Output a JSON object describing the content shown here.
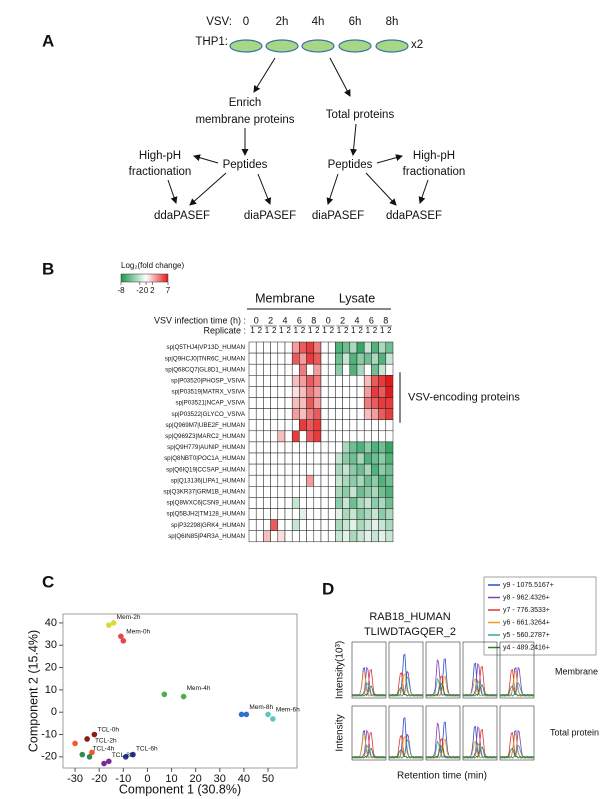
{
  "panel_labels": [
    "A",
    "B",
    "C",
    "D"
  ],
  "workflow": {
    "vsv_label": "VSV:",
    "timepoints": [
      "0",
      "2h",
      "4h",
      "6h",
      "8h"
    ],
    "cell_label": "THP1:",
    "replicates": "x2",
    "left": {
      "enrich": [
        "Enrich",
        "membrane proteins"
      ],
      "peptides": "Peptides",
      "fractionation": [
        "High-pH",
        "fractionation"
      ],
      "outputs": [
        "ddaPASEF",
        "diaPASEF"
      ]
    },
    "right": {
      "start": "Total proteins",
      "peptides": "Peptides",
      "fractionation": [
        "High-pH",
        "fractionation"
      ],
      "outputs": [
        "diaPASEF",
        "ddaPASEF"
      ]
    }
  },
  "chart_data": [
    {
      "type": "heatmap",
      "legend_title": "Log₂(fold change)",
      "clim": [
        -8,
        7
      ],
      "colorbar_ticks": [
        -8,
        -2,
        0,
        2,
        7
      ],
      "colors": {
        "low": "#1a9850",
        "mid": "#ffffff",
        "high": "#e31a1c"
      },
      "time_label": "VSV infection time (h) :",
      "replicate_label": "Replicate :",
      "groups": [
        "Membrane",
        "Lysate"
      ],
      "times": [
        0,
        2,
        4,
        6,
        8
      ],
      "replicates": [
        1,
        2
      ],
      "annotation": "VSV-encoding proteins",
      "rows": [
        "sp|Q5THJ4|VP13D_HUMAN",
        "sp|Q9HCJ0|TNR6C_HUMAN",
        "sp|Q68CQ7|GL8D1_HUMAN",
        "sp|P03520|PHOSP_VSIVA",
        "sp|P03519|MATRX_VSIVA",
        "sp|P03521|NCAP_VSIVA",
        "sp|P03522|GLYCO_VSIVA",
        "sp|Q969M7|UBE2F_HUMAN",
        "sp|Q969Z3|MARC2_HUMAN",
        "sp|Q9H779|AUNIP_HUMAN",
        "sp|Q8NBT0|POC1A_HUMAN",
        "sp|Q6IQ19|CCSAP_HUMAN",
        "sp|Q13136|LIPA1_HUMAN",
        "sp|Q3KR37|GRM1B_HUMAN",
        "sp|Q8WXC6|CSN9_HUMAN",
        "sp|Q5BJH2|TM128_HUMAN",
        "sp|P32298|GRK4_HUMAN",
        "sp|Q6IN85|P4R3A_HUMAN"
      ],
      "values": [
        [
          0,
          0,
          0,
          0,
          0,
          0,
          3,
          5,
          6,
          4,
          0,
          0,
          -6,
          -5,
          -3,
          -7,
          -2,
          -6,
          -3,
          -5
        ],
        [
          0,
          0,
          0,
          0,
          0,
          0,
          5,
          3,
          6,
          5,
          0,
          0,
          -5,
          -2,
          -6,
          -4,
          -5,
          -3,
          -6,
          -2
        ],
        [
          0,
          0,
          0,
          0,
          0,
          0,
          0,
          4,
          0,
          3,
          0,
          0,
          -4,
          0,
          -6,
          -3,
          0,
          -5,
          -2,
          0
        ],
        [
          0,
          0,
          0,
          0,
          0,
          0,
          2,
          3,
          5,
          4,
          0,
          0,
          0,
          0,
          0,
          0,
          2,
          5,
          6,
          7
        ],
        [
          0,
          0,
          0,
          0,
          0,
          0,
          1,
          2,
          4,
          3,
          0,
          0,
          0,
          0,
          0,
          0,
          3,
          6,
          5,
          7
        ],
        [
          0,
          0,
          0,
          0,
          0,
          0,
          2,
          2,
          5,
          3,
          0,
          0,
          0,
          0,
          0,
          0,
          4,
          5,
          6,
          6
        ],
        [
          0,
          0,
          0,
          0,
          0,
          0,
          3,
          2,
          4,
          5,
          0,
          0,
          0,
          0,
          0,
          0,
          2,
          3,
          5,
          6
        ],
        [
          0,
          0,
          0,
          0,
          0,
          0,
          0,
          6,
          5,
          6,
          0,
          0,
          0,
          0,
          0,
          0,
          0,
          0,
          0,
          0
        ],
        [
          0,
          0,
          0,
          0,
          2,
          0,
          6,
          0,
          5,
          6,
          0,
          0,
          0,
          0,
          0,
          0,
          0,
          0,
          0,
          0
        ],
        [
          0,
          0,
          0,
          0,
          0,
          0,
          0,
          0,
          0,
          0,
          0,
          0,
          0,
          -3,
          -5,
          -6,
          -4,
          -6,
          -5,
          -7
        ],
        [
          0,
          0,
          0,
          0,
          0,
          0,
          0,
          0,
          0,
          0,
          0,
          0,
          -2,
          -4,
          -5,
          -3,
          -6,
          -5,
          -4,
          -6
        ],
        [
          0,
          0,
          0,
          0,
          0,
          0,
          0,
          0,
          0,
          0,
          0,
          0,
          -3,
          -2,
          -4,
          -5,
          -3,
          -6,
          -4,
          -5
        ],
        [
          0,
          0,
          0,
          0,
          0,
          0,
          0,
          0,
          3,
          0,
          0,
          0,
          -2,
          -3,
          -4,
          -3,
          -5,
          -4,
          -6,
          -5
        ],
        [
          0,
          0,
          0,
          0,
          0,
          0,
          0,
          0,
          0,
          0,
          0,
          0,
          -3,
          -4,
          -2,
          -5,
          -4,
          -3,
          -5,
          -6
        ],
        [
          0,
          0,
          0,
          0,
          0,
          0,
          -2,
          0,
          0,
          0,
          0,
          0,
          -4,
          -2,
          -5,
          -3,
          -2,
          -4,
          -3,
          -5
        ],
        [
          0,
          0,
          0,
          0,
          0,
          0,
          0,
          -1,
          0,
          0,
          0,
          0,
          -1,
          -3,
          -2,
          -4,
          -3,
          -2,
          -4,
          -3
        ],
        [
          0,
          0,
          0,
          5,
          0,
          0,
          -2,
          0,
          0,
          0,
          0,
          0,
          -3,
          -2,
          -1,
          -3,
          -2,
          -1,
          -2,
          -3
        ],
        [
          0,
          0,
          2,
          0,
          1,
          0,
          0,
          0,
          0,
          0,
          0,
          0,
          -2,
          -1,
          -3,
          -2,
          -1,
          -2,
          -1,
          -2
        ]
      ]
    },
    {
      "type": "scatter",
      "xlabel": "Component 1 (30.8%)",
      "ylabel": "Component 2 (15.4%)",
      "xlim": [
        -35,
        62
      ],
      "ylim": [
        -25,
        44
      ],
      "xticks": [
        -30,
        -20,
        -10,
        0,
        10,
        20,
        30,
        40,
        50
      ],
      "yticks": [
        -20,
        -10,
        0,
        10,
        20,
        30,
        40
      ],
      "series": [
        {
          "name": "Mem-2h",
          "color": "#d9d93a",
          "x": [
            -16,
            -14
          ],
          "values": [
            39,
            40
          ]
        },
        {
          "name": "Mem-0h",
          "color": "#e8434b",
          "x": [
            -11,
            -10
          ],
          "values": [
            34,
            32
          ]
        },
        {
          "name": "Mem-4h",
          "color": "#4cae4c",
          "x": [
            7,
            15
          ],
          "values": [
            8,
            7
          ]
        },
        {
          "name": "Mem-8h",
          "color": "#2f6fd6",
          "x": [
            39,
            41
          ],
          "values": [
            -1,
            -1
          ]
        },
        {
          "name": "Mem-6h",
          "color": "#5ec8c0",
          "x": [
            50,
            52
          ],
          "values": [
            -1,
            -3
          ]
        },
        {
          "name": "TCL-0h",
          "color": "#8b1a1a",
          "x": [
            -25,
            -22
          ],
          "values": [
            -12,
            -10
          ]
        },
        {
          "name": "TCL-2h",
          "color": "#f0582a",
          "x": [
            -30,
            -23
          ],
          "values": [
            -14,
            -18
          ]
        },
        {
          "name": "TCL-4h",
          "color": "#2e8b57",
          "x": [
            -27,
            -24
          ],
          "values": [
            -19,
            -20
          ]
        },
        {
          "name": "TCL-6h",
          "color": "#2233a8",
          "x": [
            -9,
            -6
          ],
          "values": [
            -20,
            -19
          ]
        },
        {
          "name": "TCL-8h",
          "color": "#7b2a9a",
          "x": [
            -18,
            -16
          ],
          "values": [
            -23,
            -22
          ]
        }
      ]
    }
  ],
  "panel_d": {
    "title": [
      "RAB18_HUMAN",
      "TLIWDTAGQER_2"
    ],
    "legend": [
      {
        "name": "y9 - 1075.5167+",
        "color": "#2b4fc4"
      },
      {
        "name": "y8 - 962.4326+",
        "color": "#8a3fb0"
      },
      {
        "name": "y7 - 776.3533+",
        "color": "#e0332f"
      },
      {
        "name": "y6 - 661.3264+",
        "color": "#f39a1e"
      },
      {
        "name": "y5 - 560.2787+",
        "color": "#2fa7a0"
      },
      {
        "name": "y4 - 489.2416+",
        "color": "#2e7d32"
      }
    ],
    "top_ylabel": "Intensity(10³)",
    "bottom_ylabel": "Intensity",
    "top_name": "Membrane",
    "bottom_name": "Total protein",
    "xlabel": "Retention time (min)"
  }
}
